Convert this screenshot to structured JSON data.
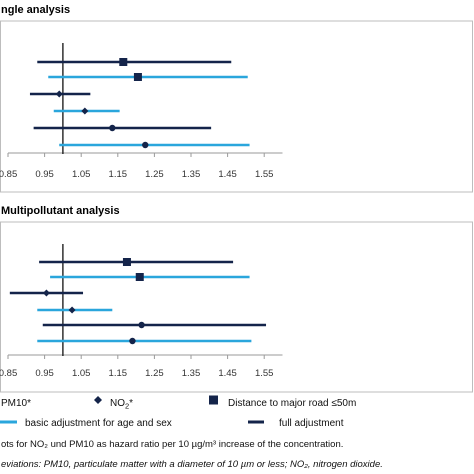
{
  "chart_data": [
    {
      "type": "forest",
      "title": "ngle analysis",
      "xlim": [
        0.85,
        1.6
      ],
      "xticks": [
        "0.85",
        "0.95",
        "1.05",
        "1.15",
        "1.25",
        "1.35",
        "1.45",
        "1.55"
      ],
      "reference_line": 1.0,
      "rows": [
        {
          "exposure": "Distance to major road ≤50m",
          "adjustment": "full adjustment",
          "marker": "square",
          "estimate": 1.165,
          "lower": 0.93,
          "upper": 1.46
        },
        {
          "exposure": "Distance to major road ≤50m",
          "adjustment": "basic adjustment for age and sex",
          "marker": "square",
          "estimate": 1.205,
          "lower": 0.96,
          "upper": 1.505
        },
        {
          "exposure": "NO2*",
          "adjustment": "full adjustment",
          "marker": "diamond",
          "estimate": 0.99,
          "lower": 0.91,
          "upper": 1.075
        },
        {
          "exposure": "NO2*",
          "adjustment": "basic adjustment for age and sex",
          "marker": "diamond",
          "estimate": 1.06,
          "lower": 0.975,
          "upper": 1.155
        },
        {
          "exposure": "PM10*",
          "adjustment": "full adjustment",
          "marker": "dot",
          "estimate": 1.135,
          "lower": 0.92,
          "upper": 1.405
        },
        {
          "exposure": "PM10*",
          "adjustment": "basic adjustment for age and sex",
          "marker": "dot",
          "estimate": 1.225,
          "lower": 0.99,
          "upper": 1.51
        }
      ]
    },
    {
      "type": "forest",
      "title": "Multipollutant analysis",
      "xlim": [
        0.85,
        1.6
      ],
      "xticks": [
        "0.85",
        "0.95",
        "1.05",
        "1.15",
        "1.25",
        "1.35",
        "1.45",
        "1.55"
      ],
      "reference_line": 1.0,
      "rows": [
        {
          "exposure": "Distance to major road ≤50m",
          "adjustment": "full adjustment",
          "marker": "square",
          "estimate": 1.175,
          "lower": 0.935,
          "upper": 1.465
        },
        {
          "exposure": "Distance to major road ≤50m",
          "adjustment": "basic adjustment for age and sex",
          "marker": "square",
          "estimate": 1.21,
          "lower": 0.965,
          "upper": 1.51
        },
        {
          "exposure": "NO2*",
          "adjustment": "full adjustment",
          "marker": "diamond",
          "estimate": 0.955,
          "lower": 0.855,
          "upper": 1.055
        },
        {
          "exposure": "NO2*",
          "adjustment": "basic adjustment for age and sex",
          "marker": "diamond",
          "estimate": 1.025,
          "lower": 0.93,
          "upper": 1.135
        },
        {
          "exposure": "PM10*",
          "adjustment": "full adjustment",
          "marker": "dot",
          "estimate": 1.215,
          "lower": 0.945,
          "upper": 1.555
        },
        {
          "exposure": "PM10*",
          "adjustment": "basic adjustment for age and sex",
          "marker": "dot",
          "estimate": 1.19,
          "lower": 0.93,
          "upper": 1.515
        }
      ]
    }
  ],
  "colors": {
    "full": "#14244a",
    "basic": "#2aa6dc",
    "axis": "#9a9a9a",
    "frame": "#bdbdbd",
    "refline": "#111111"
  },
  "legend": {
    "pm10": "PM10*",
    "no2": "NO",
    "no2_sub": "2",
    "no2_star": "*",
    "road": "Distance to major road ≤50m",
    "basic": "basic adjustment for age and sex",
    "full": "full adjustment"
  },
  "caption": {
    "line1": "ots for NO₂ und PM10 as hazard ratio per 10 µg/m³ increase of the concentration.",
    "line2": "eviations: PM10, particulate matter with a diameter of 10 µm or less; NO₂, nitrogen dioxide."
  }
}
